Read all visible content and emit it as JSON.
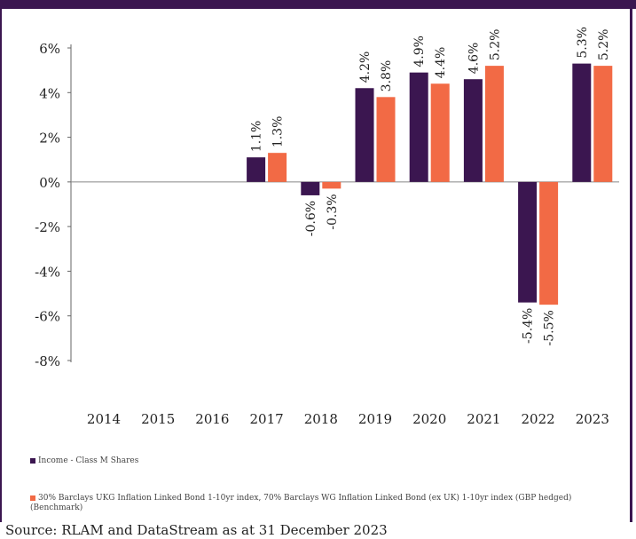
{
  "chart_data": {
    "type": "bar",
    "categories": [
      "2014",
      "2015",
      "2016",
      "2017",
      "2018",
      "2019",
      "2020",
      "2021",
      "2022",
      "2023"
    ],
    "series": [
      {
        "name": "Income - Class M Shares",
        "color": "#3b1650",
        "values": [
          null,
          null,
          null,
          1.1,
          -0.6,
          4.2,
          4.9,
          4.6,
          -5.4,
          5.3
        ],
        "labels": [
          "",
          "",
          "",
          "1.1%",
          "-0.6%",
          "4.2%",
          "4.9%",
          "4.6%",
          "-5.4%",
          "5.3%"
        ]
      },
      {
        "name": "30% Barclays UKG Inflation Linked Bond 1-10yr index, 70% Barclays WG Inflation Linked Bond (ex UK) 1-10yr index (GBP hedged) (Benchmark)",
        "color": "#f26a45",
        "values": [
          null,
          null,
          null,
          1.3,
          -0.3,
          3.8,
          4.4,
          5.2,
          -5.5,
          5.2
        ],
        "labels": [
          "",
          "",
          "",
          "1.3%",
          "-0.3%",
          "3.8%",
          "4.4%",
          "5.2%",
          "-5.5%",
          "5.2%"
        ]
      }
    ],
    "yticks": [
      "6%",
      "4%",
      "2%",
      "0%",
      "-2%",
      "-4%",
      "-6%",
      "-8%"
    ],
    "ylim": [
      -8,
      6
    ],
    "grid": false,
    "legend_position": "bottom"
  },
  "source": "Source: RLAM and DataStream as at 31 December 2023"
}
